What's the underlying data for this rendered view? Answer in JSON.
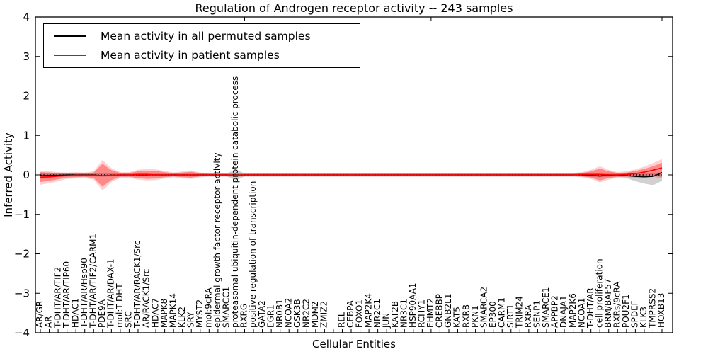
{
  "chart_data": {
    "type": "line",
    "title": "Regulation of Androgen receptor activity -- 243 samples",
    "xlabel": "Cellular Entities",
    "ylabel": "Inferred Activity",
    "ylim": [
      -4,
      4
    ],
    "yticks": [
      4,
      3,
      2,
      1,
      0,
      -1,
      -2,
      -3,
      -4
    ],
    "grid": false,
    "legend_position": "upper left",
    "legend": [
      {
        "label": "Mean activity in all permuted samples",
        "color": "#000000"
      },
      {
        "label": "Mean activity in patient samples",
        "color": "#ff0000"
      }
    ],
    "categories": [
      "AR/GR",
      "AR",
      "T-DHT/AR/TIF2",
      "T-DHT/AR/TIP60",
      "HDAC1",
      "T-DHT/AR/Hsp90",
      "T-DHT/AR/TIF2/CARM1",
      "PDE9A",
      "T-DHT/AR/DAX-1",
      "mol:T-DHT",
      "SRC",
      "T-DHT/AR/RACK1/Src",
      "AR/RACK1/Src",
      "HDAC7",
      "MAPK8",
      "MAPK14",
      "KLK2",
      "SRY",
      "MYST2",
      "mol:9cRA",
      "epidermal growth factor receptor activity",
      "SMARCC1",
      "proteasomal ubiquitin-dependent protein catabolic process",
      "RXRG",
      "positive regulation of transcription",
      "GATA2",
      "EGR1",
      "NR0B1",
      "NCOA2",
      "GSK3B",
      "NR2C2",
      "MDM2",
      "ZMIZ2",
      "",
      "REL",
      "CEBPA",
      "FOXO1",
      "MAP2K4",
      "NR2C1",
      "JUN",
      "KAT2B",
      "NR3C1",
      "HSP90AA1",
      "RCHY1",
      "EHMT2",
      "CREBBP",
      "GNB2L1",
      "KAT5",
      "RXRB",
      "PKN1",
      "SMARCA2",
      "EP300",
      "CARM1",
      "SIRT1",
      "TRIM24",
      "RXRA",
      "SENP1",
      "SMARCE1",
      "APPBP2",
      "DNAJA1",
      "MAP2K6",
      "NCOA1",
      "T-DHT/AR",
      "cell proliferation",
      "BRM/BAF57",
      "RXRs/9cRA",
      "POU2F1",
      "SPDEF",
      "KLK3",
      "TMPRSS2",
      "HOXB13"
    ],
    "series": [
      {
        "name": "Mean activity in all permuted samples",
        "style": "solid",
        "color": "#000000",
        "values": [
          -0.02,
          -0.01,
          -0.01,
          0,
          0,
          0,
          0,
          -0.02,
          -0.01,
          0,
          0,
          0,
          0,
          0,
          0,
          0,
          0,
          0,
          0,
          0,
          0,
          0,
          0,
          0,
          0,
          0,
          0,
          0,
          0,
          0,
          0,
          0,
          0,
          0,
          0,
          0,
          0,
          0,
          0,
          0,
          0,
          0,
          0,
          0,
          0,
          0,
          0,
          0,
          0,
          0,
          0,
          0,
          0,
          0,
          0,
          0,
          0,
          0,
          0,
          0,
          0,
          0,
          -0.01,
          -0.03,
          -0.01,
          0,
          -0.02,
          -0.04,
          -0.05,
          -0.04,
          0.06
        ]
      },
      {
        "name": "Mean activity in patient samples",
        "style": "solid",
        "color": "#ff0000",
        "values": [
          -0.06,
          -0.05,
          -0.03,
          -0.02,
          -0.01,
          -0.01,
          -0.01,
          -0.02,
          -0.01,
          0,
          0,
          0.01,
          0.01,
          0,
          0,
          0,
          0,
          0,
          0,
          0,
          0,
          0,
          -0.01,
          0,
          0,
          0,
          0,
          0,
          0,
          0,
          0,
          0,
          0,
          0,
          0,
          0,
          0,
          0,
          0,
          0,
          0,
          0,
          0,
          0,
          0,
          0,
          0,
          0,
          0,
          0,
          0,
          0,
          0,
          0,
          0,
          0,
          0,
          0,
          0,
          0,
          0,
          0.01,
          0.01,
          0.01,
          0,
          0,
          0.01,
          0.03,
          0.07,
          0.12,
          0.18
        ]
      }
    ],
    "bands": [
      {
        "name": "permuted-std-band",
        "color": "#999999",
        "opacity": 0.45,
        "upper": [
          0.05,
          0.04,
          0.04,
          0.035,
          0.035,
          0.035,
          0.035,
          0.04,
          0.035,
          0.035,
          0.035,
          0.035,
          0.035,
          0.035,
          0.035,
          0.035,
          0.035,
          0.035,
          0.035,
          0.035,
          0.035,
          0.035,
          0.14,
          0.035,
          0.035,
          0.035,
          0.035,
          0.035,
          0.035,
          0.035,
          0.035,
          0.035,
          0.035,
          0.035,
          0.035,
          0.035,
          0.035,
          0.035,
          0.035,
          0.035,
          0.035,
          0.035,
          0.035,
          0.035,
          0.035,
          0.035,
          0.035,
          0.035,
          0.035,
          0.035,
          0.035,
          0.035,
          0.035,
          0.035,
          0.035,
          0.035,
          0.035,
          0.035,
          0.035,
          0.035,
          0.035,
          0.035,
          0.04,
          0.05,
          0.04,
          0.035,
          0.035,
          0.04,
          0.05,
          0.05,
          0.07
        ],
        "lower": [
          -0.09,
          -0.07,
          -0.05,
          -0.04,
          -0.04,
          -0.04,
          -0.04,
          -0.05,
          -0.04,
          -0.035,
          -0.035,
          -0.035,
          -0.035,
          -0.035,
          -0.035,
          -0.035,
          -0.035,
          -0.035,
          -0.035,
          -0.035,
          -0.035,
          -0.035,
          -0.14,
          -0.035,
          -0.035,
          -0.035,
          -0.035,
          -0.035,
          -0.035,
          -0.035,
          -0.035,
          -0.035,
          -0.035,
          -0.035,
          -0.035,
          -0.035,
          -0.035,
          -0.035,
          -0.035,
          -0.035,
          -0.035,
          -0.035,
          -0.035,
          -0.035,
          -0.035,
          -0.035,
          -0.035,
          -0.035,
          -0.035,
          -0.035,
          -0.035,
          -0.035,
          -0.035,
          -0.035,
          -0.035,
          -0.035,
          -0.035,
          -0.035,
          -0.035,
          -0.035,
          -0.035,
          -0.04,
          -0.05,
          -0.06,
          -0.05,
          -0.04,
          -0.08,
          -0.16,
          -0.22,
          -0.26,
          -0.15
        ]
      },
      {
        "name": "patient-std-band-outer",
        "color": "#ff0000",
        "opacity": 0.18,
        "upper": [
          0.1,
          0.09,
          0.07,
          0.06,
          0.07,
          0.06,
          0.09,
          0.38,
          0.17,
          0.07,
          0.07,
          0.13,
          0.15,
          0.14,
          0.1,
          0.06,
          0.09,
          0.11,
          0.06,
          0.05,
          0.05,
          0.05,
          0.05,
          0.05,
          0.05,
          0.05,
          0.05,
          0.05,
          0.05,
          0.05,
          0.05,
          0.05,
          0.05,
          0.05,
          0.05,
          0.05,
          0.05,
          0.05,
          0.05,
          0.05,
          0.05,
          0.05,
          0.05,
          0.05,
          0.05,
          0.05,
          0.05,
          0.05,
          0.05,
          0.05,
          0.05,
          0.05,
          0.05,
          0.05,
          0.05,
          0.05,
          0.05,
          0.05,
          0.05,
          0.05,
          0.05,
          0.07,
          0.13,
          0.22,
          0.13,
          0.07,
          0.09,
          0.14,
          0.21,
          0.3,
          0.4
        ],
        "lower": [
          -0.25,
          -0.21,
          -0.16,
          -0.1,
          -0.09,
          -0.08,
          -0.12,
          -0.4,
          -0.18,
          -0.08,
          -0.07,
          -0.12,
          -0.14,
          -0.13,
          -0.09,
          -0.06,
          -0.09,
          -0.1,
          -0.06,
          -0.05,
          -0.05,
          -0.05,
          -0.05,
          -0.05,
          -0.05,
          -0.05,
          -0.05,
          -0.05,
          -0.05,
          -0.05,
          -0.05,
          -0.05,
          -0.05,
          -0.05,
          -0.05,
          -0.05,
          -0.05,
          -0.05,
          -0.05,
          -0.05,
          -0.05,
          -0.05,
          -0.05,
          -0.05,
          -0.05,
          -0.05,
          -0.05,
          -0.05,
          -0.05,
          -0.05,
          -0.05,
          -0.05,
          -0.05,
          -0.05,
          -0.05,
          -0.05,
          -0.05,
          -0.05,
          -0.05,
          -0.05,
          -0.05,
          -0.06,
          -0.1,
          -0.19,
          -0.12,
          -0.07,
          -0.06,
          -0.08,
          -0.07,
          -0.05,
          -0.09
        ]
      },
      {
        "name": "patient-std-band-inner",
        "color": "#ff0000",
        "opacity": 0.35,
        "upper": [
          0.07,
          0.06,
          0.05,
          0.04,
          0.05,
          0.04,
          0.06,
          0.28,
          0.12,
          0.05,
          0.05,
          0.09,
          0.11,
          0.1,
          0.07,
          0.04,
          0.06,
          0.08,
          0.04,
          0.03,
          0.03,
          0.03,
          0.03,
          0.03,
          0.03,
          0.03,
          0.03,
          0.03,
          0.03,
          0.03,
          0.03,
          0.03,
          0.03,
          0.03,
          0.03,
          0.03,
          0.03,
          0.03,
          0.03,
          0.03,
          0.03,
          0.03,
          0.03,
          0.03,
          0.03,
          0.03,
          0.03,
          0.03,
          0.03,
          0.03,
          0.03,
          0.03,
          0.03,
          0.03,
          0.03,
          0.03,
          0.03,
          0.03,
          0.03,
          0.03,
          0.03,
          0.05,
          0.09,
          0.16,
          0.09,
          0.05,
          0.06,
          0.1,
          0.15,
          0.22,
          0.31
        ],
        "lower": [
          -0.18,
          -0.15,
          -0.11,
          -0.07,
          -0.06,
          -0.05,
          -0.08,
          -0.3,
          -0.13,
          -0.05,
          -0.05,
          -0.08,
          -0.1,
          -0.09,
          -0.06,
          -0.04,
          -0.06,
          -0.07,
          -0.04,
          -0.03,
          -0.03,
          -0.03,
          -0.03,
          -0.03,
          -0.03,
          -0.03,
          -0.03,
          -0.03,
          -0.03,
          -0.03,
          -0.03,
          -0.03,
          -0.03,
          -0.03,
          -0.03,
          -0.03,
          -0.03,
          -0.03,
          -0.03,
          -0.03,
          -0.03,
          -0.03,
          -0.03,
          -0.03,
          -0.03,
          -0.03,
          -0.03,
          -0.03,
          -0.03,
          -0.03,
          -0.03,
          -0.03,
          -0.03,
          -0.03,
          -0.03,
          -0.03,
          -0.03,
          -0.03,
          -0.03,
          -0.03,
          -0.03,
          -0.04,
          -0.07,
          -0.14,
          -0.08,
          -0.05,
          -0.04,
          -0.05,
          -0.04,
          -0.03,
          -0.05
        ]
      }
    ],
    "zero_line": {
      "color": "#000000",
      "style": "dotted",
      "y": 0
    },
    "top_tick_indices": [
      23,
      44,
      70
    ]
  }
}
